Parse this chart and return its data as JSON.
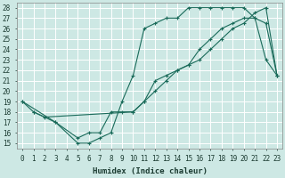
{
  "xlabel": "Humidex (Indice chaleur)",
  "xlim": [
    -0.5,
    23.5
  ],
  "ylim": [
    14.5,
    28.5
  ],
  "xticks": [
    0,
    1,
    2,
    3,
    4,
    5,
    6,
    7,
    8,
    9,
    10,
    11,
    12,
    13,
    14,
    15,
    16,
    17,
    18,
    19,
    20,
    21,
    22,
    23
  ],
  "yticks": [
    15,
    16,
    17,
    18,
    19,
    20,
    21,
    22,
    23,
    24,
    25,
    26,
    27,
    28
  ],
  "bg_color": "#cde8e4",
  "grid_color": "#ffffff",
  "line_color": "#1a6b5a",
  "line1_x": [
    0,
    1,
    3,
    5,
    6,
    7,
    8,
    9,
    10,
    11,
    12,
    13,
    14,
    15,
    16,
    17,
    18,
    19,
    20,
    21,
    22,
    23
  ],
  "line1_y": [
    19,
    18,
    17,
    15,
    15,
    15.5,
    16,
    19,
    21.5,
    26,
    26.5,
    27,
    27,
    28,
    28,
    28,
    28,
    28,
    28,
    27,
    23,
    21.5
  ],
  "line2_x": [
    0,
    3,
    5,
    6,
    7,
    8,
    9,
    10,
    11,
    12,
    13,
    14,
    15,
    16,
    17,
    18,
    19,
    20,
    21,
    22,
    23
  ],
  "line2_y": [
    19,
    17,
    15.5,
    16,
    16,
    18,
    18,
    18,
    19,
    21,
    21.5,
    22,
    22.5,
    24,
    25,
    26,
    26.5,
    27,
    27,
    26.5,
    21.5
  ],
  "line3_x": [
    1,
    2,
    10,
    11,
    12,
    13,
    14,
    15,
    16,
    17,
    18,
    19,
    20,
    21,
    22,
    23
  ],
  "line3_y": [
    18,
    17.5,
    18,
    19,
    20,
    21,
    22,
    22.5,
    23,
    24,
    25,
    26,
    26.5,
    27.5,
    28,
    21.5
  ]
}
